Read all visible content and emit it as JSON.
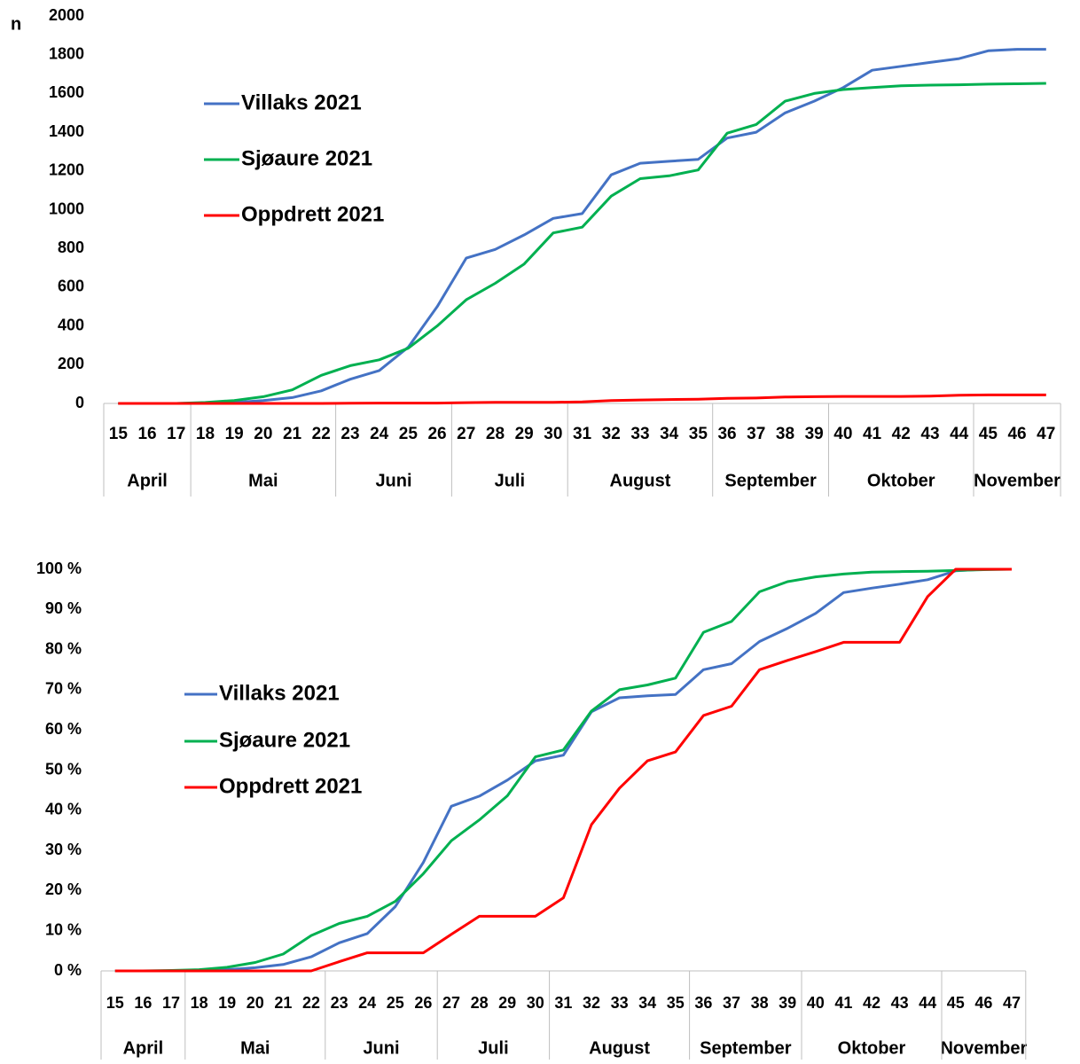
{
  "chart_data": [
    {
      "type": "line",
      "y_label": "n",
      "categories": [
        "15",
        "16",
        "17",
        "18",
        "19",
        "20",
        "21",
        "22",
        "23",
        "24",
        "25",
        "26",
        "27",
        "28",
        "29",
        "30",
        "31",
        "32",
        "33",
        "34",
        "35",
        "36",
        "37",
        "38",
        "39",
        "40",
        "41",
        "42",
        "43",
        "44",
        "45",
        "46",
        "47"
      ],
      "groups": [
        {
          "label": "April",
          "from": 0,
          "to": 2
        },
        {
          "label": "Mai",
          "from": 3,
          "to": 7
        },
        {
          "label": "Juni",
          "from": 8,
          "to": 11
        },
        {
          "label": "Juli",
          "from": 12,
          "to": 15
        },
        {
          "label": "August",
          "from": 16,
          "to": 20
        },
        {
          "label": "September",
          "from": 21,
          "to": 24
        },
        {
          "label": "Oktober",
          "from": 25,
          "to": 29
        },
        {
          "label": "November",
          "from": 30,
          "to": 32
        }
      ],
      "series": [
        {
          "name": "Villaks 2021",
          "color": "#4472c4",
          "values": [
            0,
            0,
            0,
            2,
            5,
            15,
            30,
            65,
            125,
            170,
            290,
            500,
            750,
            795,
            870,
            955,
            980,
            1180,
            1240,
            1250,
            1260,
            1370,
            1400,
            1500,
            1560,
            1630,
            1720,
            1740,
            1760,
            1780,
            1820,
            1828,
            1828
          ]
        },
        {
          "name": "Sjøaure 2021",
          "color": "#00b050",
          "values": [
            0,
            0,
            0,
            5,
            15,
            35,
            70,
            145,
            195,
            225,
            285,
            400,
            535,
            620,
            720,
            880,
            910,
            1070,
            1160,
            1175,
            1205,
            1395,
            1440,
            1560,
            1600,
            1620,
            1630,
            1640,
            1643,
            1645,
            1648,
            1650,
            1652
          ]
        },
        {
          "name": "Oppdrett 2021",
          "color": "#ff0000",
          "values": [
            0,
            0,
            0,
            0,
            0,
            0,
            0,
            0,
            1,
            2,
            2,
            2,
            4,
            6,
            6,
            6,
            8,
            15,
            18,
            20,
            22,
            26,
            28,
            33,
            35,
            36,
            36,
            36,
            38,
            42,
            44,
            44,
            44
          ]
        }
      ],
      "ylim": [
        0,
        2000
      ],
      "yticks": [
        0,
        200,
        400,
        600,
        800,
        1000,
        1200,
        1400,
        1600,
        1800,
        2000
      ],
      "legend": "upper left"
    },
    {
      "type": "line",
      "categories": [
        "15",
        "16",
        "17",
        "18",
        "19",
        "20",
        "21",
        "22",
        "23",
        "24",
        "25",
        "26",
        "27",
        "28",
        "29",
        "30",
        "31",
        "32",
        "33",
        "34",
        "35",
        "36",
        "37",
        "38",
        "39",
        "40",
        "41",
        "42",
        "43",
        "44",
        "45",
        "46",
        "47"
      ],
      "groups": [
        {
          "label": "April",
          "from": 0,
          "to": 2
        },
        {
          "label": "Mai",
          "from": 3,
          "to": 7
        },
        {
          "label": "Juni",
          "from": 8,
          "to": 11
        },
        {
          "label": "Juli",
          "from": 12,
          "to": 15
        },
        {
          "label": "August",
          "from": 16,
          "to": 20
        },
        {
          "label": "September",
          "from": 21,
          "to": 24
        },
        {
          "label": "Oktober",
          "from": 25,
          "to": 29
        },
        {
          "label": "November",
          "from": 30,
          "to": 32
        }
      ],
      "series": [
        {
          "name": "Villaks 2021",
          "color": "#4472c4",
          "values": [
            0,
            0,
            0,
            0.1,
            0.3,
            0.8,
            1.6,
            3.5,
            7,
            9.3,
            16,
            27,
            41,
            43.5,
            47.5,
            52.3,
            53.7,
            64.5,
            68,
            68.5,
            68.8,
            75,
            76.5,
            82,
            85.3,
            89,
            94.2,
            95.3,
            96.3,
            97.4,
            99.6,
            100,
            100
          ]
        },
        {
          "name": "Sjøaure 2021",
          "color": "#00b050",
          "values": [
            0,
            0,
            0.1,
            0.3,
            0.9,
            2.1,
            4.2,
            8.8,
            11.8,
            13.6,
            17.3,
            24.2,
            32.4,
            37.6,
            43.6,
            53.3,
            55,
            64.7,
            70,
            71.2,
            72.9,
            84.3,
            87,
            94.4,
            96.9,
            98.1,
            98.8,
            99.3,
            99.4,
            99.5,
            99.7,
            99.9,
            100
          ]
        },
        {
          "name": "Oppdrett 2021",
          "color": "#ff0000",
          "values": [
            0,
            0,
            0,
            0,
            0,
            0,
            0,
            0,
            2.3,
            4.5,
            4.5,
            4.5,
            9.1,
            13.6,
            13.6,
            13.6,
            18.2,
            36.4,
            45.5,
            52.3,
            54.5,
            63.6,
            65.9,
            75,
            77.3,
            79.5,
            81.8,
            81.8,
            81.8,
            93.2,
            100,
            100,
            100
          ]
        }
      ],
      "ylim": [
        0,
        100
      ],
      "yticks": [
        {
          "value": 0,
          "label": "0 %"
        },
        {
          "value": 10,
          "label": "10 %"
        },
        {
          "value": 20,
          "label": "20 %"
        },
        {
          "value": 30,
          "label": "30 %"
        },
        {
          "value": 40,
          "label": "40 %"
        },
        {
          "value": 50,
          "label": "50 %"
        },
        {
          "value": 60,
          "label": "60 %"
        },
        {
          "value": 70,
          "label": "70 %"
        },
        {
          "value": 80,
          "label": "80 %"
        },
        {
          "value": 90,
          "label": "90 %"
        },
        {
          "value": 100,
          "label": "100 %"
        }
      ],
      "legend": "upper left"
    }
  ]
}
